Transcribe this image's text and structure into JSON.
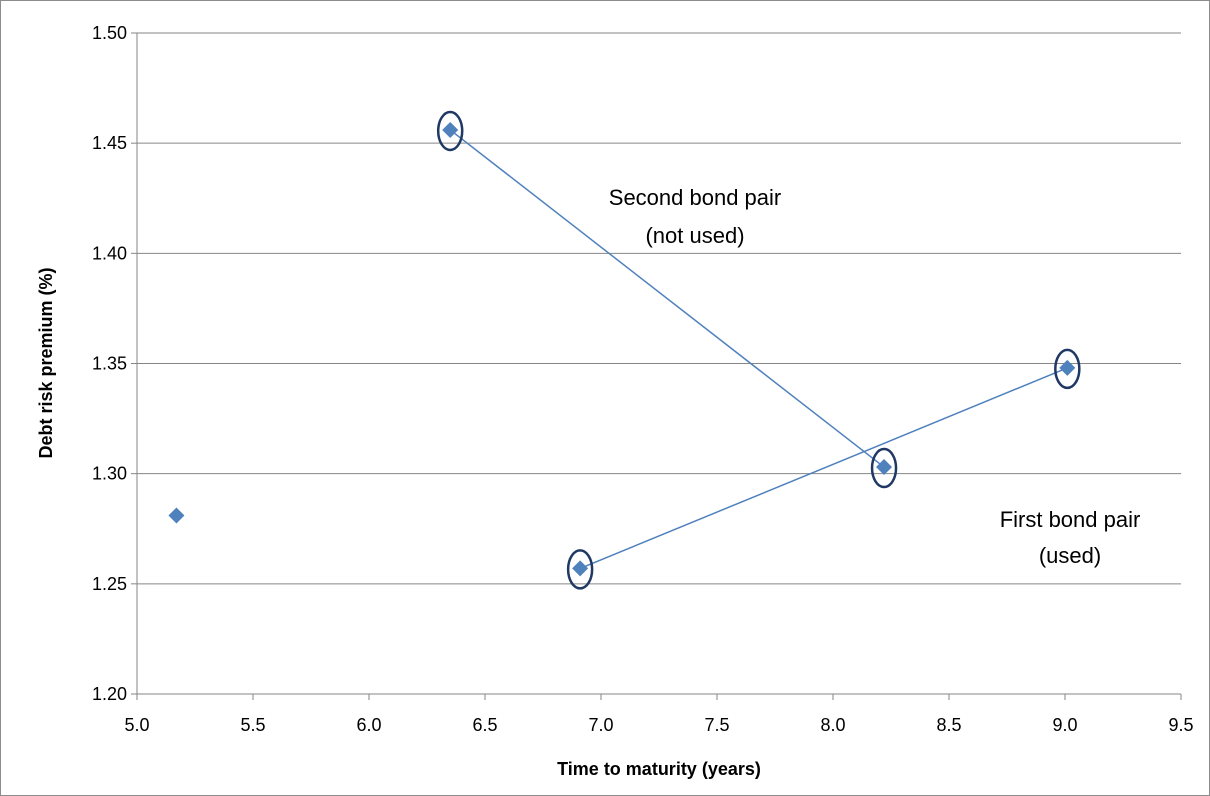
{
  "chart_data": {
    "type": "scatter",
    "title": "",
    "xlabel": "Time to maturity (years)",
    "ylabel": "Debt risk premium (%)",
    "xlim": [
      5.0,
      9.5
    ],
    "ylim": [
      1.2,
      1.5
    ],
    "x_ticks": [
      "5.0",
      "5.5",
      "6.0",
      "6.5",
      "7.0",
      "7.5",
      "8.0",
      "8.5",
      "9.0",
      "9.5"
    ],
    "y_ticks": [
      "1.20",
      "1.25",
      "1.30",
      "1.35",
      "1.40",
      "1.45",
      "1.50"
    ],
    "grid": "horizontal",
    "marker": "diamond",
    "color": "#4f81bd",
    "points": [
      {
        "x": 5.17,
        "y": 1.281,
        "circled": false
      },
      {
        "x": 6.35,
        "y": 1.456,
        "circled": true
      },
      {
        "x": 6.91,
        "y": 1.257,
        "circled": true
      },
      {
        "x": 8.22,
        "y": 1.303,
        "circled": true
      },
      {
        "x": 9.01,
        "y": 1.348,
        "circled": true
      }
    ],
    "lines": [
      {
        "from": [
          6.35,
          1.456
        ],
        "to": [
          8.22,
          1.303
        ]
      },
      {
        "from": [
          6.91,
          1.257
        ],
        "to": [
          9.01,
          1.348
        ]
      }
    ],
    "annotations": [
      {
        "lines": [
          "Second bond pair",
          "(not used)"
        ]
      },
      {
        "lines": [
          "First bond pair",
          "(used)"
        ]
      }
    ]
  }
}
